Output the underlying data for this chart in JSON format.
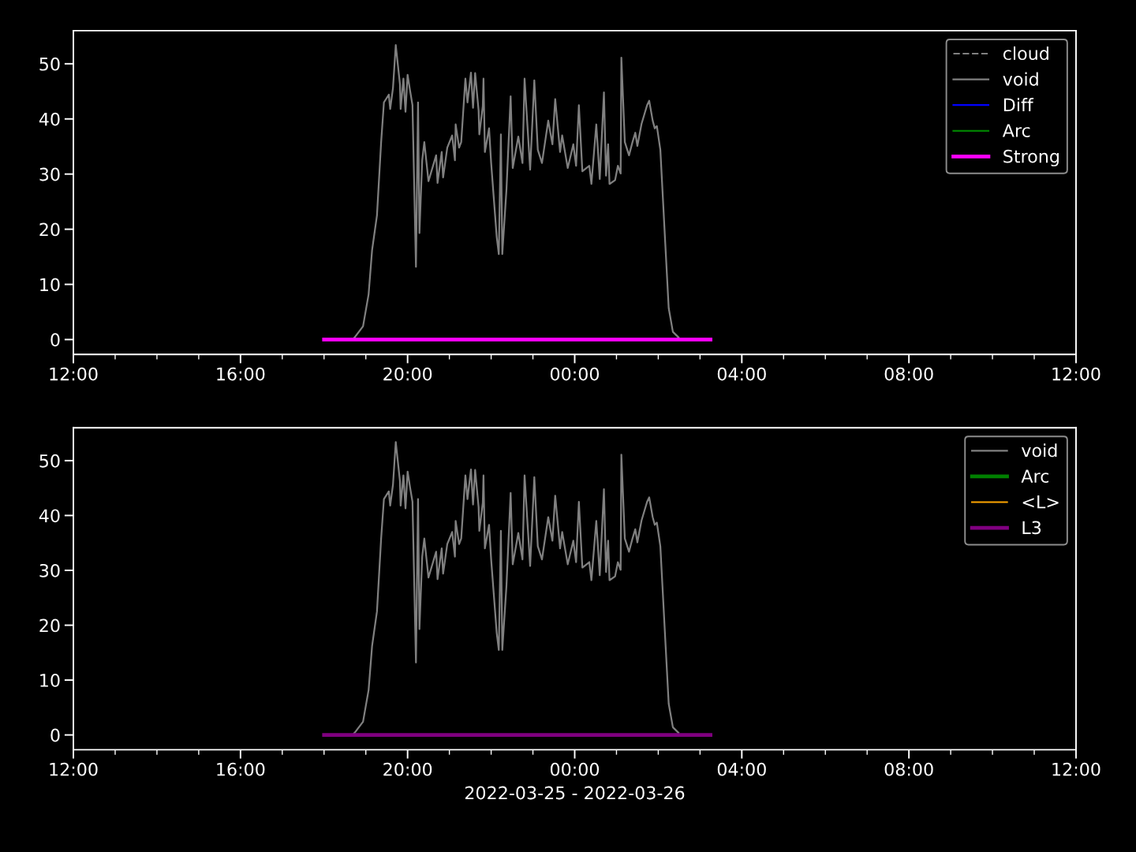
{
  "chart_data": [
    {
      "type": "line",
      "xlim": [
        "2022-03-25T12:00",
        "2022-03-26T12:00"
      ],
      "ylim": [
        -2.7,
        56
      ],
      "yticks": [
        0,
        10,
        20,
        30,
        40,
        50
      ],
      "xticks": [
        {
          "value": "2022-03-25T12:00",
          "label": "12:00"
        },
        {
          "value": "2022-03-25T13:00",
          "label": null
        },
        {
          "value": "2022-03-25T14:00",
          "label": null
        },
        {
          "value": "2022-03-25T15:00",
          "label": null
        },
        {
          "value": "2022-03-25T16:00",
          "label": "16:00"
        },
        {
          "value": "2022-03-25T17:00",
          "label": null
        },
        {
          "value": "2022-03-25T18:00",
          "label": null
        },
        {
          "value": "2022-03-25T19:00",
          "label": null
        },
        {
          "value": "2022-03-25T20:00",
          "label": "20:00"
        },
        {
          "value": "2022-03-25T21:00",
          "label": null
        },
        {
          "value": "2022-03-25T22:00",
          "label": null
        },
        {
          "value": "2022-03-25T23:00",
          "label": null
        },
        {
          "value": "2022-03-26T00:00",
          "label": "00:00"
        },
        {
          "value": "2022-03-26T01:00",
          "label": null
        },
        {
          "value": "2022-03-26T02:00",
          "label": null
        },
        {
          "value": "2022-03-26T03:00",
          "label": null
        },
        {
          "value": "2022-03-26T04:00",
          "label": "04:00"
        },
        {
          "value": "2022-03-26T05:00",
          "label": null
        },
        {
          "value": "2022-03-26T06:00",
          "label": null
        },
        {
          "value": "2022-03-26T07:00",
          "label": null
        },
        {
          "value": "2022-03-26T08:00",
          "label": "08:00"
        },
        {
          "value": "2022-03-26T09:00",
          "label": null
        },
        {
          "value": "2022-03-26T10:00",
          "label": null
        },
        {
          "value": "2022-03-26T11:00",
          "label": null
        },
        {
          "value": "2022-03-26T12:00",
          "label": "12:00"
        }
      ],
      "grid": false,
      "legend": "top right",
      "series": [
        {
          "name": "cloud",
          "color": "#808080",
          "line_style": "dashed"
        },
        {
          "name": "void",
          "color": "#808080",
          "line_style": "solid",
          "x": [
            "2022-03-25T18:41",
            "2022-03-25T18:44",
            "2022-03-25T18:56",
            "2022-03-25T19:04",
            "2022-03-25T19:09",
            "2022-03-25T19:16",
            "2022-03-25T19:22",
            "2022-03-25T19:26",
            "2022-03-25T19:33",
            "2022-03-25T19:35",
            "2022-03-25T19:39",
            "2022-03-25T19:43",
            "2022-03-25T19:49",
            "2022-03-25T19:50",
            "2022-03-25T19:54",
            "2022-03-25T19:57",
            "2022-03-25T20:00",
            "2022-03-25T20:04",
            "2022-03-25T20:07",
            "2022-03-25T20:12",
            "2022-03-25T20:15",
            "2022-03-25T20:17",
            "2022-03-25T20:21",
            "2022-03-25T20:24",
            "2022-03-25T20:30",
            "2022-03-25T20:41",
            "2022-03-25T20:43",
            "2022-03-25T20:49",
            "2022-03-25T20:51",
            "2022-03-25T20:57",
            "2022-03-25T21:04",
            "2022-03-25T21:08",
            "2022-03-25T21:09",
            "2022-03-25T21:14",
            "2022-03-25T21:17",
            "2022-03-25T21:23",
            "2022-03-25T21:26",
            "2022-03-25T21:31",
            "2022-03-25T21:34",
            "2022-03-25T21:37",
            "2022-03-25T21:42",
            "2022-03-25T21:43",
            "2022-03-25T21:48",
            "2022-03-25T21:49",
            "2022-03-25T21:51",
            "2022-03-25T21:57",
            "2022-03-25T22:00",
            "2022-03-25T22:08",
            "2022-03-25T22:11",
            "2022-03-25T22:12",
            "2022-03-25T22:14",
            "2022-03-25T22:16",
            "2022-03-25T22:22",
            "2022-03-25T22:28",
            "2022-03-25T22:31",
            "2022-03-25T22:39",
            "2022-03-25T22:45",
            "2022-03-25T22:48",
            "2022-03-25T22:56",
            "2022-03-25T23:02",
            "2022-03-25T23:07",
            "2022-03-25T23:13",
            "2022-03-25T23:22",
            "2022-03-25T23:28",
            "2022-03-25T23:32",
            "2022-03-25T23:39",
            "2022-03-25T23:42",
            "2022-03-25T23:50",
            "2022-03-25T23:58",
            "2022-03-26T00:02",
            "2022-03-26T00:06",
            "2022-03-26T00:11",
            "2022-03-26T00:21",
            "2022-03-26T00:24",
            "2022-03-26T00:31",
            "2022-03-26T00:36",
            "2022-03-26T00:42",
            "2022-03-26T00:45",
            "2022-03-26T00:48",
            "2022-03-26T00:50",
            "2022-03-26T00:58",
            "2022-03-26T01:02",
            "2022-03-26T01:06",
            "2022-03-26T01:07",
            "2022-03-26T01:12",
            "2022-03-26T01:18",
            "2022-03-26T01:23",
            "2022-03-26T01:27",
            "2022-03-26T01:30",
            "2022-03-26T01:36",
            "2022-03-26T01:44",
            "2022-03-26T01:47",
            "2022-03-26T01:52",
            "2022-03-26T01:55",
            "2022-03-26T01:58",
            "2022-03-26T02:03",
            "2022-03-26T02:06",
            "2022-03-26T02:10",
            "2022-03-26T02:15",
            "2022-03-26T02:21",
            "2022-03-26T02:29"
          ],
          "values": [
            0,
            0.4,
            2.4,
            8.2,
            16.2,
            22.5,
            35.8,
            43,
            44.4,
            41.8,
            45.6,
            53.4,
            46.3,
            41.8,
            47.3,
            41.3,
            48,
            44.8,
            42.5,
            13.2,
            43,
            19.3,
            32.5,
            35.8,
            28.7,
            33.4,
            28.4,
            34,
            29.4,
            34.8,
            37,
            32.5,
            39,
            34.8,
            35.8,
            47.3,
            43,
            48.4,
            42,
            48.3,
            41.5,
            37.2,
            42.3,
            47.3,
            34,
            38.3,
            32,
            18.6,
            15.5,
            22.9,
            37.2,
            15.5,
            27.2,
            44.1,
            31.1,
            36.8,
            32,
            47.3,
            30.8,
            47,
            34.4,
            32,
            39.7,
            35.4,
            43.6,
            34,
            37,
            31.1,
            35.4,
            31.5,
            42.5,
            30.5,
            31.5,
            28.2,
            39,
            29.1,
            44.8,
            29.7,
            35.4,
            28.2,
            28.9,
            31.5,
            30.1,
            51.1,
            35.8,
            33.4,
            35.8,
            37.5,
            35.1,
            39.1,
            42.5,
            43.3,
            39.7,
            38.3,
            38.7,
            34.4,
            27.2,
            17.6,
            5.7,
            1.4,
            0.4
          ]
        },
        {
          "name": "Diff",
          "color": "#0000ff",
          "line_style": "solid"
        },
        {
          "name": "Arc",
          "color": "#008000",
          "line_style": "solid"
        },
        {
          "name": "Strong",
          "color": "#ff00ff",
          "line_style": "solid",
          "x": [
            "2022-03-25T18:00",
            "2022-03-26T03:15"
          ],
          "values": [
            0,
            0
          ]
        }
      ]
    },
    {
      "type": "line",
      "xlim": [
        "2022-03-25T12:00",
        "2022-03-26T12:00"
      ],
      "ylim": [
        -2.7,
        56
      ],
      "yticks": [
        0,
        10,
        20,
        30,
        40,
        50
      ],
      "xlabel": "2022-03-25 - 2022-03-26",
      "xticks": [
        {
          "value": "2022-03-25T12:00",
          "label": "12:00"
        },
        {
          "value": "2022-03-25T13:00",
          "label": null
        },
        {
          "value": "2022-03-25T14:00",
          "label": null
        },
        {
          "value": "2022-03-25T15:00",
          "label": null
        },
        {
          "value": "2022-03-25T16:00",
          "label": "16:00"
        },
        {
          "value": "2022-03-25T17:00",
          "label": null
        },
        {
          "value": "2022-03-25T18:00",
          "label": null
        },
        {
          "value": "2022-03-25T19:00",
          "label": null
        },
        {
          "value": "2022-03-25T20:00",
          "label": "20:00"
        },
        {
          "value": "2022-03-25T21:00",
          "label": null
        },
        {
          "value": "2022-03-25T22:00",
          "label": null
        },
        {
          "value": "2022-03-25T23:00",
          "label": null
        },
        {
          "value": "2022-03-26T00:00",
          "label": "00:00"
        },
        {
          "value": "2022-03-26T01:00",
          "label": null
        },
        {
          "value": "2022-03-26T02:00",
          "label": null
        },
        {
          "value": "2022-03-26T03:00",
          "label": null
        },
        {
          "value": "2022-03-26T04:00",
          "label": "04:00"
        },
        {
          "value": "2022-03-26T05:00",
          "label": null
        },
        {
          "value": "2022-03-26T06:00",
          "label": null
        },
        {
          "value": "2022-03-26T07:00",
          "label": null
        },
        {
          "value": "2022-03-26T08:00",
          "label": "08:00"
        },
        {
          "value": "2022-03-26T09:00",
          "label": null
        },
        {
          "value": "2022-03-26T10:00",
          "label": null
        },
        {
          "value": "2022-03-26T11:00",
          "label": null
        },
        {
          "value": "2022-03-26T12:00",
          "label": "12:00"
        }
      ],
      "grid": false,
      "legend": "top right",
      "series": [
        {
          "name": "void",
          "color": "#808080",
          "line_style": "solid",
          "x": [
            "2022-03-25T18:41",
            "2022-03-25T18:44",
            "2022-03-25T18:56",
            "2022-03-25T19:04",
            "2022-03-25T19:09",
            "2022-03-25T19:16",
            "2022-03-25T19:22",
            "2022-03-25T19:26",
            "2022-03-25T19:33",
            "2022-03-25T19:35",
            "2022-03-25T19:39",
            "2022-03-25T19:43",
            "2022-03-25T19:49",
            "2022-03-25T19:50",
            "2022-03-25T19:54",
            "2022-03-25T19:57",
            "2022-03-25T20:00",
            "2022-03-25T20:04",
            "2022-03-25T20:07",
            "2022-03-25T20:12",
            "2022-03-25T20:15",
            "2022-03-25T20:17",
            "2022-03-25T20:21",
            "2022-03-25T20:24",
            "2022-03-25T20:30",
            "2022-03-25T20:41",
            "2022-03-25T20:43",
            "2022-03-25T20:49",
            "2022-03-25T20:51",
            "2022-03-25T20:57",
            "2022-03-25T21:04",
            "2022-03-25T21:08",
            "2022-03-25T21:09",
            "2022-03-25T21:14",
            "2022-03-25T21:17",
            "2022-03-25T21:23",
            "2022-03-25T21:26",
            "2022-03-25T21:31",
            "2022-03-25T21:34",
            "2022-03-25T21:37",
            "2022-03-25T21:42",
            "2022-03-25T21:43",
            "2022-03-25T21:48",
            "2022-03-25T21:49",
            "2022-03-25T21:51",
            "2022-03-25T21:57",
            "2022-03-25T22:00",
            "2022-03-25T22:08",
            "2022-03-25T22:11",
            "2022-03-25T22:12",
            "2022-03-25T22:14",
            "2022-03-25T22:16",
            "2022-03-25T22:22",
            "2022-03-25T22:28",
            "2022-03-25T22:31",
            "2022-03-25T22:39",
            "2022-03-25T22:45",
            "2022-03-25T22:48",
            "2022-03-25T22:56",
            "2022-03-25T23:02",
            "2022-03-25T23:07",
            "2022-03-25T23:13",
            "2022-03-25T23:22",
            "2022-03-25T23:28",
            "2022-03-25T23:32",
            "2022-03-25T23:39",
            "2022-03-25T23:42",
            "2022-03-25T23:50",
            "2022-03-25T23:58",
            "2022-03-26T00:02",
            "2022-03-26T00:06",
            "2022-03-26T00:11",
            "2022-03-26T00:21",
            "2022-03-26T00:24",
            "2022-03-26T00:31",
            "2022-03-26T00:36",
            "2022-03-26T00:42",
            "2022-03-26T00:45",
            "2022-03-26T00:48",
            "2022-03-26T00:50",
            "2022-03-26T00:58",
            "2022-03-26T01:02",
            "2022-03-26T01:06",
            "2022-03-26T01:07",
            "2022-03-26T01:12",
            "2022-03-26T01:18",
            "2022-03-26T01:23",
            "2022-03-26T01:27",
            "2022-03-26T01:30",
            "2022-03-26T01:36",
            "2022-03-26T01:44",
            "2022-03-26T01:47",
            "2022-03-26T01:52",
            "2022-03-26T01:55",
            "2022-03-26T01:58",
            "2022-03-26T02:03",
            "2022-03-26T02:06",
            "2022-03-26T02:10",
            "2022-03-26T02:15",
            "2022-03-26T02:21",
            "2022-03-26T02:29"
          ],
          "values": [
            0,
            0.4,
            2.4,
            8.2,
            16.2,
            22.5,
            35.8,
            43,
            44.4,
            41.8,
            45.6,
            53.4,
            46.3,
            41.8,
            47.3,
            41.3,
            48,
            44.8,
            42.5,
            13.2,
            43,
            19.3,
            32.5,
            35.8,
            28.7,
            33.4,
            28.4,
            34,
            29.4,
            34.8,
            37,
            32.5,
            39,
            34.8,
            35.8,
            47.3,
            43,
            48.4,
            42,
            48.3,
            41.5,
            37.2,
            42.3,
            47.3,
            34,
            38.3,
            32,
            18.6,
            15.5,
            22.9,
            37.2,
            15.5,
            27.2,
            44.1,
            31.1,
            36.8,
            32,
            47.3,
            30.8,
            47,
            34.4,
            32,
            39.7,
            35.4,
            43.6,
            34,
            37,
            31.1,
            35.4,
            31.5,
            42.5,
            30.5,
            31.5,
            28.2,
            39,
            29.1,
            44.8,
            29.7,
            35.4,
            28.2,
            28.9,
            31.5,
            30.1,
            51.1,
            35.8,
            33.4,
            35.8,
            37.5,
            35.1,
            39.1,
            42.5,
            43.3,
            39.7,
            38.3,
            38.7,
            34.4,
            27.2,
            17.6,
            5.7,
            1.4,
            0.4
          ]
        },
        {
          "name": "Arc",
          "color": "#008000",
          "line_style": "solid"
        },
        {
          "name": "<L>",
          "color": "#ffa500",
          "line_style": "solid"
        },
        {
          "name": "L3",
          "color": "#800080",
          "line_style": "solid",
          "x": [
            "2022-03-25T18:00",
            "2022-03-26T03:15"
          ],
          "values": [
            0,
            0
          ]
        }
      ]
    }
  ]
}
